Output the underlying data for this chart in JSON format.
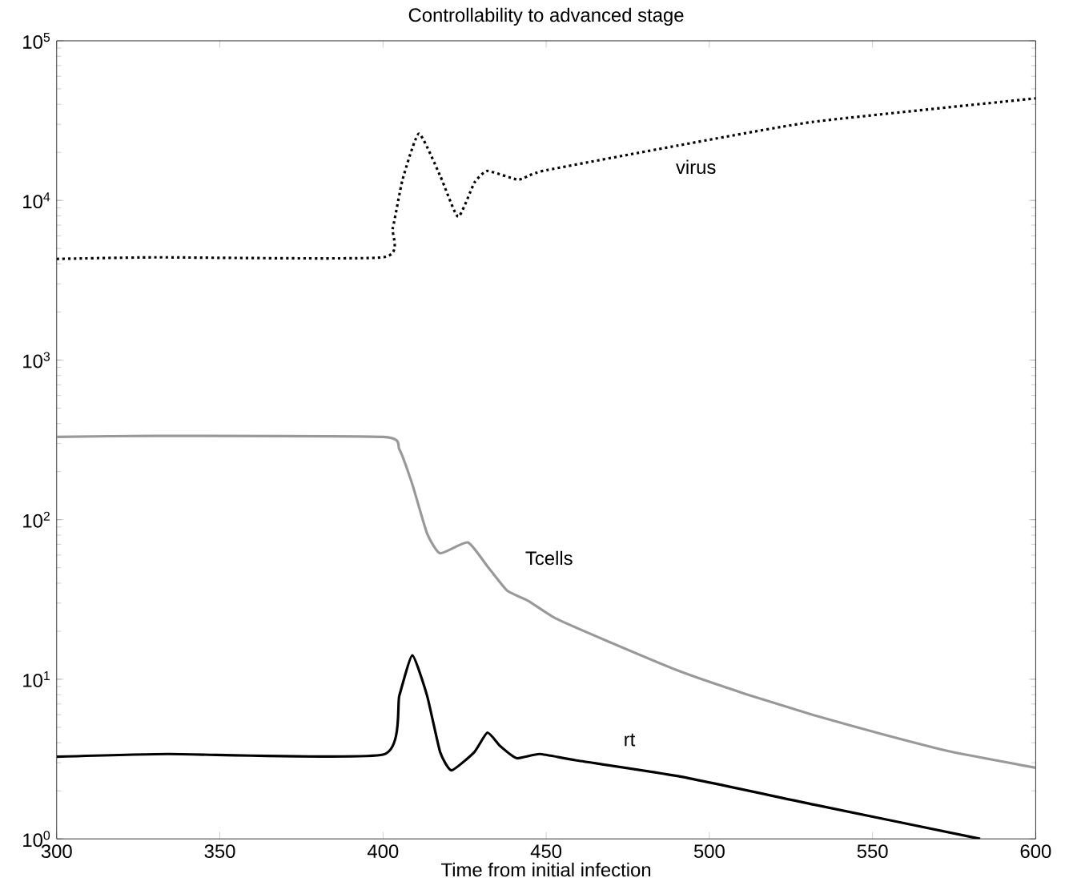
{
  "chart_data": {
    "type": "line",
    "title": "Controllability to advanced stage",
    "xlabel": "Time from initial infection",
    "xlim": [
      300,
      600
    ],
    "ylim": [
      1,
      100000
    ],
    "log": "y",
    "grid": false,
    "xticks": [
      300,
      350,
      400,
      450,
      500,
      550,
      600
    ],
    "yticks": [
      {
        "value": 1,
        "label": "10$^{0}$"
      },
      {
        "value": 10,
        "label": "10$^{1}$"
      },
      {
        "value": 100,
        "label": "10$^{2}$"
      },
      {
        "value": 1000,
        "label": "10$^{3}$"
      },
      {
        "value": 10000,
        "label": "10$^{4}$"
      },
      {
        "value": 100000,
        "label": "10$^{5}$"
      }
    ],
    "series": [
      {
        "name": "virus",
        "color": "#000000",
        "line_style": "dotted",
        "x": [
          300,
          330,
          400,
          403,
          406,
          411,
          417.5,
          423,
          428,
          432,
          441.5,
          449,
          490.5,
          532,
          600
        ],
        "values": [
          4300,
          4400,
          4400,
          6700,
          13500,
          26200,
          14300,
          7900,
          12900,
          15300,
          13500,
          15300,
          22100,
          31100,
          43600
        ]
      },
      {
        "name": "Tcells",
        "color": "#999999",
        "line_style": "solid",
        "x": [
          300,
          330,
          400,
          405,
          409,
          413.5,
          417.5,
          426,
          432,
          438,
          444.5,
          453,
          469.7,
          490.5,
          511,
          532,
          553,
          574,
          600
        ],
        "values": [
          330,
          335,
          330,
          276,
          166,
          82,
          61.5,
          72,
          51,
          36,
          31,
          24,
          17,
          11.3,
          8.1,
          5.96,
          4.53,
          3.52,
          2.79
        ]
      },
      {
        "name": "rt",
        "color": "#000000",
        "line_style": "solid",
        "x": [
          300,
          334,
          400,
          405,
          409,
          413.5,
          417.5,
          421,
          428,
          432,
          436,
          441,
          448,
          459,
          490.5,
          532,
          583
        ],
        "values": [
          3.27,
          3.4,
          3.37,
          7.9,
          14.1,
          7.9,
          3.5,
          2.69,
          3.5,
          4.63,
          3.8,
          3.2,
          3.4,
          3.11,
          2.47,
          1.64,
          1.0
        ]
      }
    ]
  }
}
